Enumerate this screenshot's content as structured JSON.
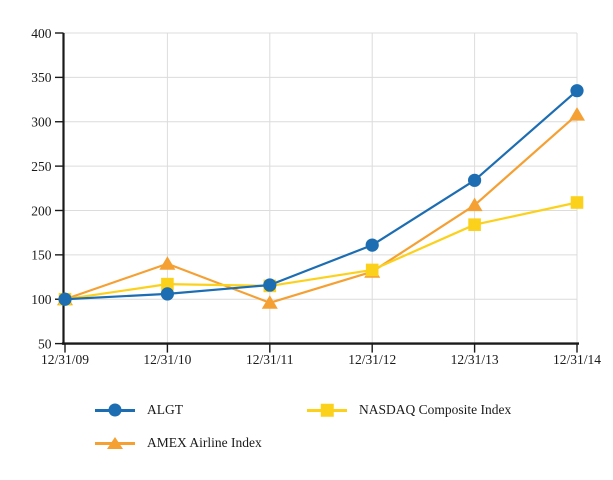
{
  "chart_data": {
    "type": "line",
    "title": "",
    "x_labels": [
      "12/31/09",
      "12/31/10",
      "12/31/11",
      "12/31/12",
      "12/31/13",
      "12/31/14"
    ],
    "y_ticks": [
      50,
      100,
      150,
      200,
      250,
      300,
      350,
      400
    ],
    "ylim": [
      50,
      400
    ],
    "grid": true,
    "legend_position": "bottom",
    "series": [
      {
        "name": "ALGT",
        "marker": "circle",
        "color": "#1C6DB2",
        "values": [
          100,
          106,
          116,
          161,
          234,
          335
        ]
      },
      {
        "name": "NASDAQ Composite Index",
        "marker": "square",
        "color": "#FCD11B",
        "values": [
          100,
          117,
          115,
          133,
          184,
          209
        ]
      },
      {
        "name": "AMEX Airline Index",
        "marker": "triangle",
        "color": "#F5A033",
        "values": [
          100,
          140,
          96,
          131,
          206,
          308
        ]
      }
    ],
    "colors": {
      "grid": "#DCDCDC",
      "axis": "#1A1A1A",
      "text": "#1A1A1A",
      "background": "#FFFFFF"
    }
  }
}
